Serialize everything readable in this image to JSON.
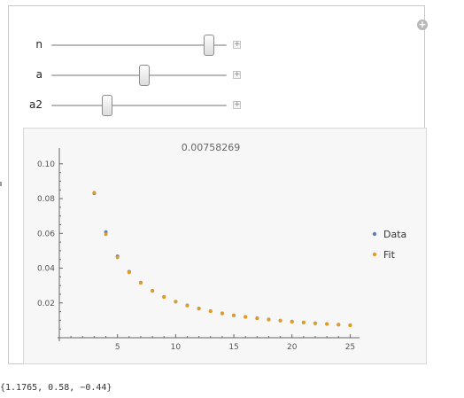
{
  "sliders": [
    {
      "label": "n",
      "position": 0.9
    },
    {
      "label": "a",
      "position": 0.53
    },
    {
      "label": "a2",
      "position": 0.32
    }
  ],
  "plot": {
    "title": "0.00758269",
    "legend": [
      {
        "name": "Data",
        "color": "#5e81b5"
      },
      {
        "name": "Fit",
        "color": "#e19c24"
      }
    ]
  },
  "chart_data": {
    "type": "scatter",
    "title": "0.00758269",
    "xlabel": "",
    "ylabel": "",
    "xlim": [
      0,
      25.5
    ],
    "ylim": [
      0,
      0.105
    ],
    "xticks": [
      "5",
      "10",
      "15",
      "20",
      "25"
    ],
    "yticks": [
      "0.02",
      "0.04",
      "0.06",
      "0.08",
      "0.10"
    ],
    "grid": false,
    "legend_position": "right",
    "series": [
      {
        "name": "Data",
        "color": "#5e81b5",
        "x": [
          3,
          4,
          5,
          6,
          7,
          8,
          9,
          10,
          11,
          12,
          13,
          14,
          15,
          16,
          17,
          18,
          19,
          20,
          21,
          22,
          23,
          24,
          25
        ],
        "y": [
          0.083,
          0.0608,
          0.0468,
          0.038,
          0.0317,
          0.027,
          0.0235,
          0.0208,
          0.0186,
          0.0168,
          0.0153,
          0.014,
          0.0129,
          0.012,
          0.0112,
          0.0105,
          0.0098,
          0.0093,
          0.0088,
          0.0083,
          0.0079,
          0.0075,
          0.0072
        ]
      },
      {
        "name": "Fit",
        "color": "#e19c24",
        "x": [
          3,
          4,
          5,
          6,
          7,
          8,
          9,
          10,
          11,
          12,
          13,
          14,
          15,
          16,
          17,
          18,
          19,
          20,
          21,
          22,
          23,
          24,
          25
        ],
        "y": [
          0.0834,
          0.0595,
          0.0462,
          0.0376,
          0.0315,
          0.0269,
          0.0234,
          0.0207,
          0.0185,
          0.0167,
          0.0152,
          0.0139,
          0.0128,
          0.0119,
          0.0111,
          0.0104,
          0.0098,
          0.0092,
          0.0087,
          0.0083,
          0.0079,
          0.0075,
          0.0071
        ]
      }
    ]
  },
  "output": {
    "text": "{1.1765, 0.58, −0.44}"
  },
  "icons": {
    "add": "+",
    "slider_plus": "+"
  }
}
